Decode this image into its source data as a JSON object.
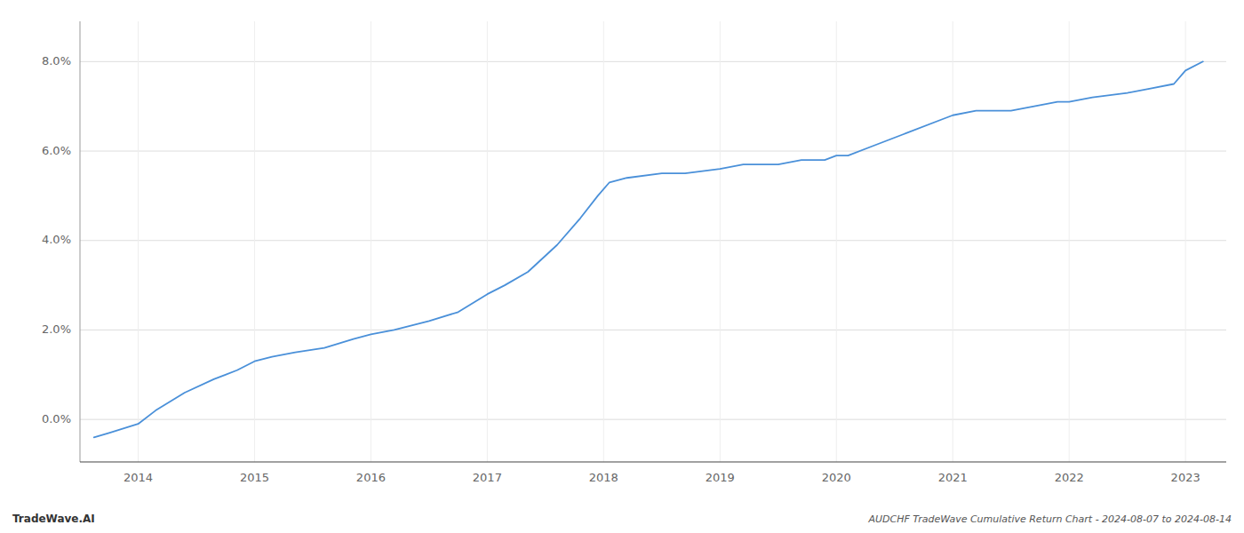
{
  "chart_data": {
    "type": "line",
    "title": "AUDCHF TradeWave Cumulative Return Chart - 2024-08-07 to 2024-08-14",
    "annotations": [
      "TradeWave.AI"
    ],
    "x": [
      2013.62,
      2013.75,
      2014.0,
      2014.15,
      2014.4,
      2014.65,
      2014.85,
      2015.0,
      2015.15,
      2015.35,
      2015.6,
      2015.85,
      2016.0,
      2016.2,
      2016.5,
      2016.75,
      2017.0,
      2017.15,
      2017.35,
      2017.6,
      2017.8,
      2017.95,
      2018.05,
      2018.2,
      2018.5,
      2018.7,
      2019.0,
      2019.2,
      2019.5,
      2019.7,
      2019.9,
      2020.0,
      2020.1,
      2020.3,
      2020.6,
      2020.9,
      2021.0,
      2021.2,
      2021.5,
      2021.7,
      2021.9,
      2022.0,
      2022.2,
      2022.5,
      2022.7,
      2022.9,
      2023.0,
      2023.15
    ],
    "values": [
      -0.004,
      -0.003,
      -0.001,
      0.002,
      0.006,
      0.009,
      0.011,
      0.013,
      0.014,
      0.015,
      0.016,
      0.018,
      0.019,
      0.02,
      0.022,
      0.024,
      0.028,
      0.03,
      0.033,
      0.039,
      0.045,
      0.05,
      0.053,
      0.054,
      0.055,
      0.055,
      0.056,
      0.057,
      0.057,
      0.058,
      0.058,
      0.059,
      0.059,
      0.061,
      0.064,
      0.067,
      0.068,
      0.069,
      0.069,
      0.07,
      0.071,
      0.071,
      0.072,
      0.073,
      0.074,
      0.075,
      0.078,
      0.08
    ],
    "color": "#4a90d9",
    "xlim": [
      2013.5,
      2023.35
    ],
    "ylim": [
      -0.0095,
      0.089
    ],
    "xticks": [
      2014,
      2015,
      2016,
      2017,
      2018,
      2019,
      2020,
      2021,
      2022,
      2023
    ],
    "yticks": [
      {
        "value": 0.0,
        "label": "0.0%"
      },
      {
        "value": 0.02,
        "label": "2.0%"
      },
      {
        "value": 0.04,
        "label": "4.0%"
      },
      {
        "value": 0.06,
        "label": "6.0%"
      },
      {
        "value": 0.08,
        "label": "8.0%"
      }
    ],
    "grid": true
  }
}
